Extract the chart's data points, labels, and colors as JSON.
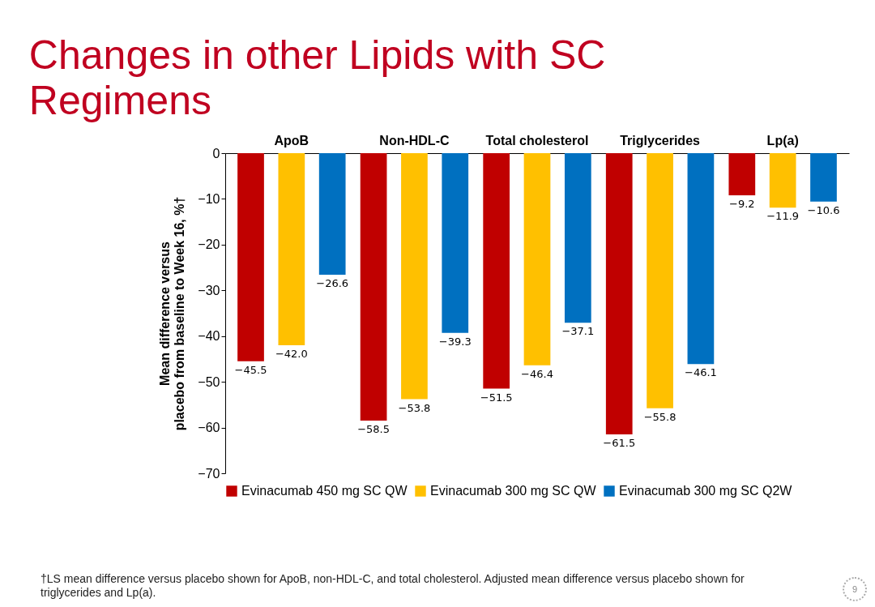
{
  "chart_data": {
    "type": "bar",
    "title": "Changes in other Lipids with SC Regimens",
    "ylabel": "Mean difference versus placebo from baseline to Week 16, %†",
    "categories": [
      "ApoB",
      "Non-HDL-C",
      "Total cholesterol",
      "Triglycerides",
      "Lp(a)"
    ],
    "series": [
      {
        "name": "Evinacumab 450 mg SC QW",
        "color": "#c00000",
        "values": [
          -45.5,
          -58.5,
          -51.5,
          -61.5,
          -9.2
        ],
        "value_labels": [
          "−45.5",
          "−58.5",
          "−51.5",
          "−61.5",
          "−9.2"
        ]
      },
      {
        "name": "Evinacumab 300 mg SC QW",
        "color": "#ffc000",
        "values": [
          -42.0,
          -53.8,
          -46.4,
          -55.8,
          -11.9
        ],
        "value_labels": [
          "−42.0",
          "−53.8",
          "−46.4",
          "−55.8",
          "−11.9"
        ]
      },
      {
        "name": "Evinacumab 300 mg SC Q2W",
        "color": "#0070c0",
        "values": [
          -26.6,
          -39.3,
          -37.1,
          -46.1,
          -10.6
        ],
        "value_labels": [
          "−26.6",
          "−39.3",
          "−37.1",
          "−46.1",
          "−10.6"
        ]
      }
    ],
    "ylim": [
      -70,
      0
    ],
    "yticks": [
      -70,
      -60,
      -50,
      -40,
      -30,
      -20,
      -10,
      0
    ],
    "legend": "bottom",
    "grid": false,
    "annotations": [
      "†LS mean difference versus placebo shown for ApoB, non-HDL-C, and total cholesterol. Adjusted mean difference versus placebo shown for triglycerides and Lp(a).",
      "9"
    ]
  }
}
